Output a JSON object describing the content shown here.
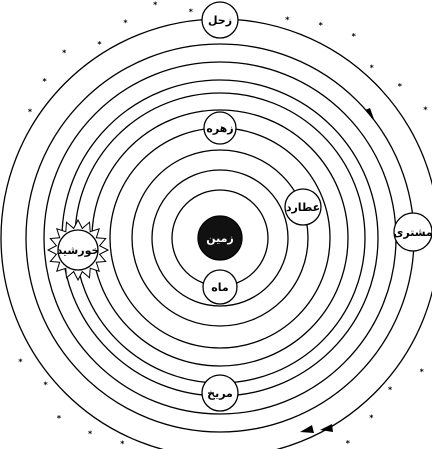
{
  "nodes": [
    {
      "label": "زحل"
    },
    {
      "label": "زهره"
    },
    {
      "label": "عطارد"
    },
    {
      "label": "زمین"
    },
    {
      "label": "ماه"
    },
    {
      "label": "خورشید"
    },
    {
      "label": "مشتری"
    },
    {
      "label": "مریخ"
    }
  ]
}
